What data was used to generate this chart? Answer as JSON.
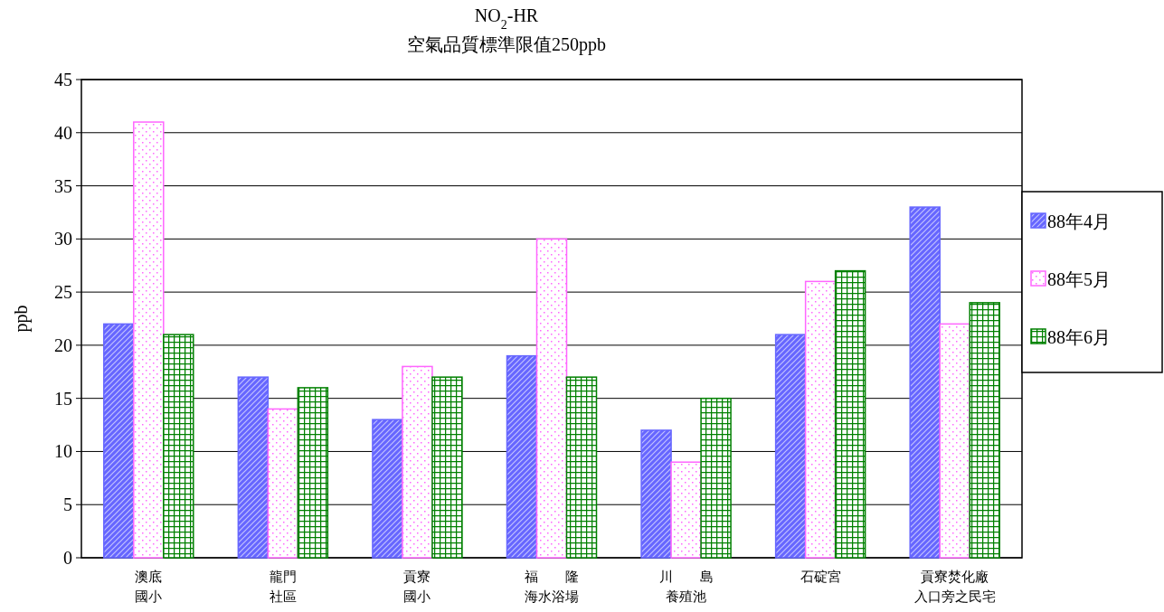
{
  "chart_data": {
    "type": "bar",
    "title": "NO$_{2}$-HR",
    "subtitle": "空氣品質標準限值250ppb",
    "ylabel": "ppb",
    "categories": [
      "澳底國小",
      "龍門社區",
      "貢寮國小",
      "福　　隆海水浴場",
      "川　　島養殖池",
      "石碇宮",
      "貢寮焚化廠入口旁之民宅"
    ],
    "series": [
      {
        "name": "88年4月",
        "color": "#6666ff",
        "values": [
          22,
          17,
          13,
          19,
          12,
          21,
          33
        ]
      },
      {
        "name": "88年5月",
        "color": "#ff66ff",
        "values": [
          41,
          14,
          18,
          30,
          9,
          26,
          22
        ]
      },
      {
        "name": "88年6月",
        "color": "#008000",
        "values": [
          21,
          16,
          17,
          17,
          15,
          27,
          24
        ]
      }
    ],
    "ylim": [
      0,
      45
    ],
    "yticks": [
      0,
      5,
      10,
      15,
      20,
      25,
      30,
      35,
      40,
      45
    ],
    "grid": "y",
    "legend": "right"
  }
}
